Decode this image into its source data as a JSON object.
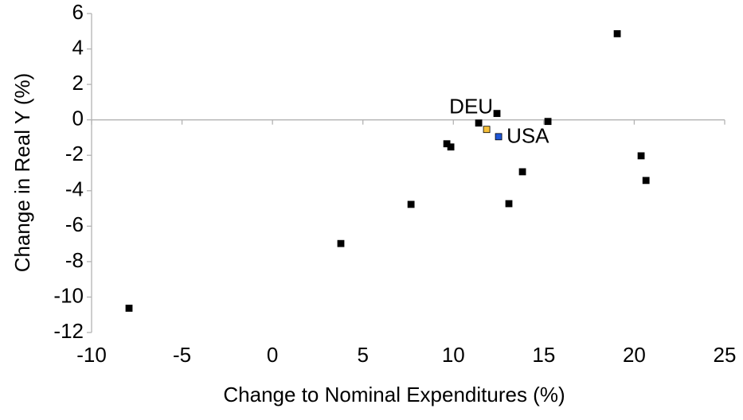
{
  "chart_data": {
    "type": "scatter",
    "x_label": "Change to Nominal Expenditures (%)",
    "y_label": "Change in Real Y (%)",
    "x": [
      -7.93,
      3.78,
      7.66,
      9.64,
      9.86,
      11.4,
      11.84,
      12.5,
      12.41,
      13.07,
      13.82,
      15.23,
      19.06,
      20.38,
      20.65
    ],
    "y": [
      -10.63,
      -6.98,
      -4.77,
      -1.35,
      -1.53,
      -0.18,
      -0.54,
      -0.95,
      0.36,
      -4.73,
      -2.93,
      -0.09,
      4.86,
      -2.03,
      -3.42
    ],
    "colors": [
      "#000000",
      "#000000",
      "#000000",
      "#000000",
      "#000000",
      "#000000",
      "#f5c03a",
      "#1f56d6",
      "#000000",
      "#000000",
      "#000000",
      "#000000",
      "#000000",
      "#000000",
      "#000000"
    ],
    "annotations": [
      {
        "text": "DEU",
        "point": 6,
        "position": "above-left"
      },
      {
        "text": "USA",
        "point": 7,
        "position": "right"
      }
    ],
    "xlim": [
      -10,
      25
    ],
    "xticks": [
      -10,
      -5,
      0,
      5,
      10,
      15,
      20,
      25
    ],
    "ylim": [
      -12,
      6
    ],
    "yticks": [
      -12,
      -10,
      -8,
      -6,
      -4,
      -2,
      0,
      2,
      4,
      6
    ]
  }
}
